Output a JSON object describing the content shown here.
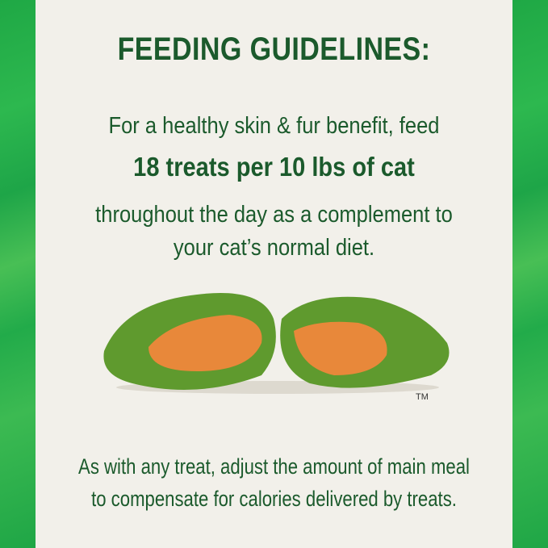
{
  "title": "FEEDING GUIDELINES:",
  "intro": "For a healthy skin & fur benefit, feed",
  "amount": "18 treats per 10 lbs of cat",
  "line3": "throughout the day as a complement to",
  "line4": "your cat’s normal diet.",
  "trademark": "TM",
  "note_line1": "As with any treat, adjust the amount of main meal",
  "note_line2": "to compensate for calories delivered by treats.",
  "colors": {
    "text": "#1b5a2c",
    "side": "#24b14d",
    "panel": "#f2f0ea",
    "treat_shell": "#5f9a2e",
    "treat_fill": "#e8883a"
  }
}
